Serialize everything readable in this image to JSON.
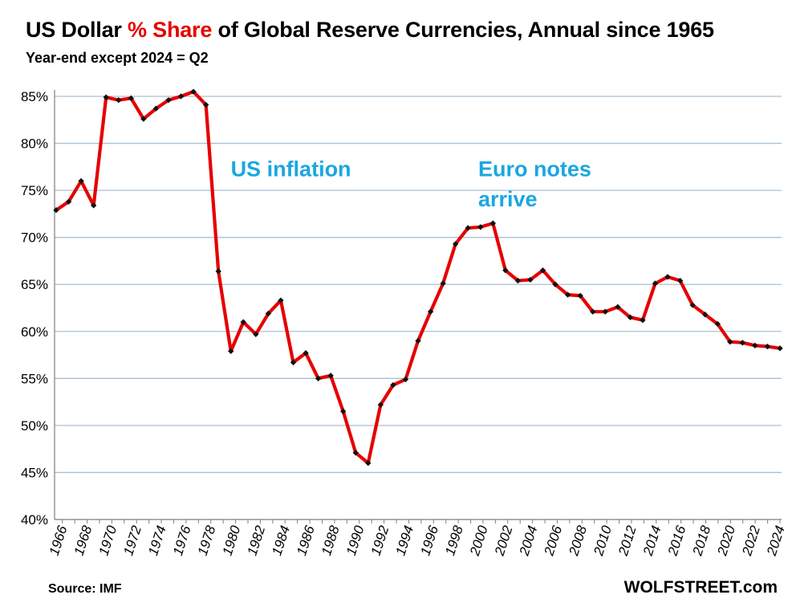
{
  "title": {
    "prefix": "US Dollar ",
    "highlight": "% Share",
    "suffix": " of Global Reserve Currencies, Annual since 1965"
  },
  "subtitle": "Year-end except 2024 = Q2",
  "source": "Source: IMF",
  "brand": "WOLFSTREET.com",
  "colors": {
    "line": "#e60000",
    "marker": "#111111",
    "grid": "#a9c0d4",
    "annotation": "#1aa7e0",
    "highlight": "#e60000"
  },
  "chart_data": {
    "type": "line",
    "title": "US Dollar % Share of Global Reserve Currencies, Annual since 1965",
    "subtitle": "Year-end except 2024 = Q2",
    "xlabel": "",
    "ylabel": "",
    "ylim": [
      40,
      85
    ],
    "xlim": [
      1965,
      2024
    ],
    "grid": true,
    "y_ticks": [
      40,
      45,
      50,
      55,
      60,
      65,
      70,
      75,
      80,
      85
    ],
    "y_tick_labels": [
      "40%",
      "45%",
      "50%",
      "55%",
      "60%",
      "65%",
      "70%",
      "75%",
      "80%",
      "85%"
    ],
    "x_ticks": [
      1966,
      1968,
      1970,
      1972,
      1974,
      1976,
      1978,
      1980,
      1982,
      1984,
      1986,
      1988,
      1990,
      1992,
      1994,
      1996,
      1998,
      2000,
      2002,
      2004,
      2006,
      2008,
      2010,
      2012,
      2014,
      2016,
      2018,
      2020,
      2022,
      2024
    ],
    "x_tick_labels": [
      "1966",
      "1968",
      "1970",
      "1972",
      "1974",
      "1976",
      "1978",
      "1980",
      "1982",
      "1984",
      "1986",
      "1988",
      "1990",
      "1992",
      "1994",
      "1996",
      "1998",
      "2000",
      "2002",
      "2004",
      "2006",
      "2008",
      "2010",
      "2012",
      "2014",
      "2016",
      "2018",
      "2020",
      "2022",
      "2024"
    ],
    "series": [
      {
        "name": "US Dollar share",
        "x": [
          1965,
          1966,
          1967,
          1968,
          1969,
          1970,
          1971,
          1972,
          1973,
          1974,
          1975,
          1976,
          1977,
          1978,
          1979,
          1980,
          1981,
          1982,
          1983,
          1984,
          1985,
          1986,
          1987,
          1988,
          1989,
          1990,
          1991,
          1992,
          1993,
          1994,
          1995,
          1996,
          1997,
          1998,
          1999,
          2000,
          2001,
          2002,
          2003,
          2004,
          2005,
          2006,
          2007,
          2008,
          2009,
          2010,
          2011,
          2012,
          2013,
          2014,
          2015,
          2016,
          2017,
          2018,
          2019,
          2020,
          2021,
          2022,
          2023,
          2024
        ],
        "values": [
          72.9,
          73.8,
          76.0,
          73.4,
          84.9,
          84.6,
          84.8,
          82.6,
          83.7,
          84.6,
          85.0,
          85.5,
          84.1,
          66.4,
          57.9,
          61.0,
          59.7,
          61.9,
          63.3,
          56.7,
          57.7,
          55.0,
          55.3,
          51.5,
          47.1,
          46.0,
          52.2,
          54.3,
          54.9,
          59.0,
          62.1,
          65.1,
          69.3,
          71.0,
          71.1,
          71.5,
          66.5,
          65.4,
          65.5,
          66.5,
          65.0,
          63.9,
          63.8,
          62.1,
          62.1,
          62.6,
          61.5,
          61.2,
          65.1,
          65.8,
          65.4,
          62.8,
          61.8,
          60.8,
          58.9,
          58.8,
          58.5,
          58.4,
          58.2,
          null
        ],
        "note": "last value plotted at 2024 tick"
      }
    ],
    "annotations": [
      {
        "text": "US inflation",
        "x": 1980,
        "y": 76.5
      },
      {
        "text": "Euro notes",
        "x": 2000,
        "y": 76.5
      },
      {
        "text": "arrive",
        "x": 2000,
        "y": 73.3
      }
    ]
  }
}
